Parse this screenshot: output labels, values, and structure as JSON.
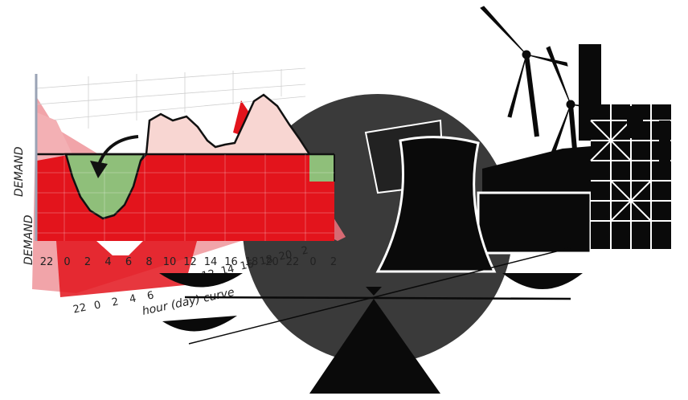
{
  "labels": {
    "demand_upper": "DEMAND",
    "demand_lower": "DEMAND",
    "hour_axis": "hour (day) curve"
  },
  "ticks_front": [
    "22",
    "0",
    "2",
    "4",
    "6",
    "8",
    "10",
    "12",
    "14",
    "16",
    "18",
    "20",
    "22",
    "0",
    "2"
  ],
  "ticks_mid": [
    "12",
    "14",
    "16",
    "18",
    "20",
    "2"
  ],
  "ticks_back": [
    "22",
    "0",
    "2",
    "4",
    "6"
  ],
  "colors": {
    "demand_red": "#e3141c",
    "peak_pink": "#f8d6d2",
    "valley_green": "#8fbf7a",
    "ghost_red": "#e8707a",
    "dark_disc": "#3a3a3a",
    "plant_black": "#0a0a0a"
  },
  "icons": [
    "wind-turbine-icon",
    "cooling-tower-icon",
    "power-plant-icon",
    "balance-scale-icon",
    "shift-arrow-icon"
  ]
}
